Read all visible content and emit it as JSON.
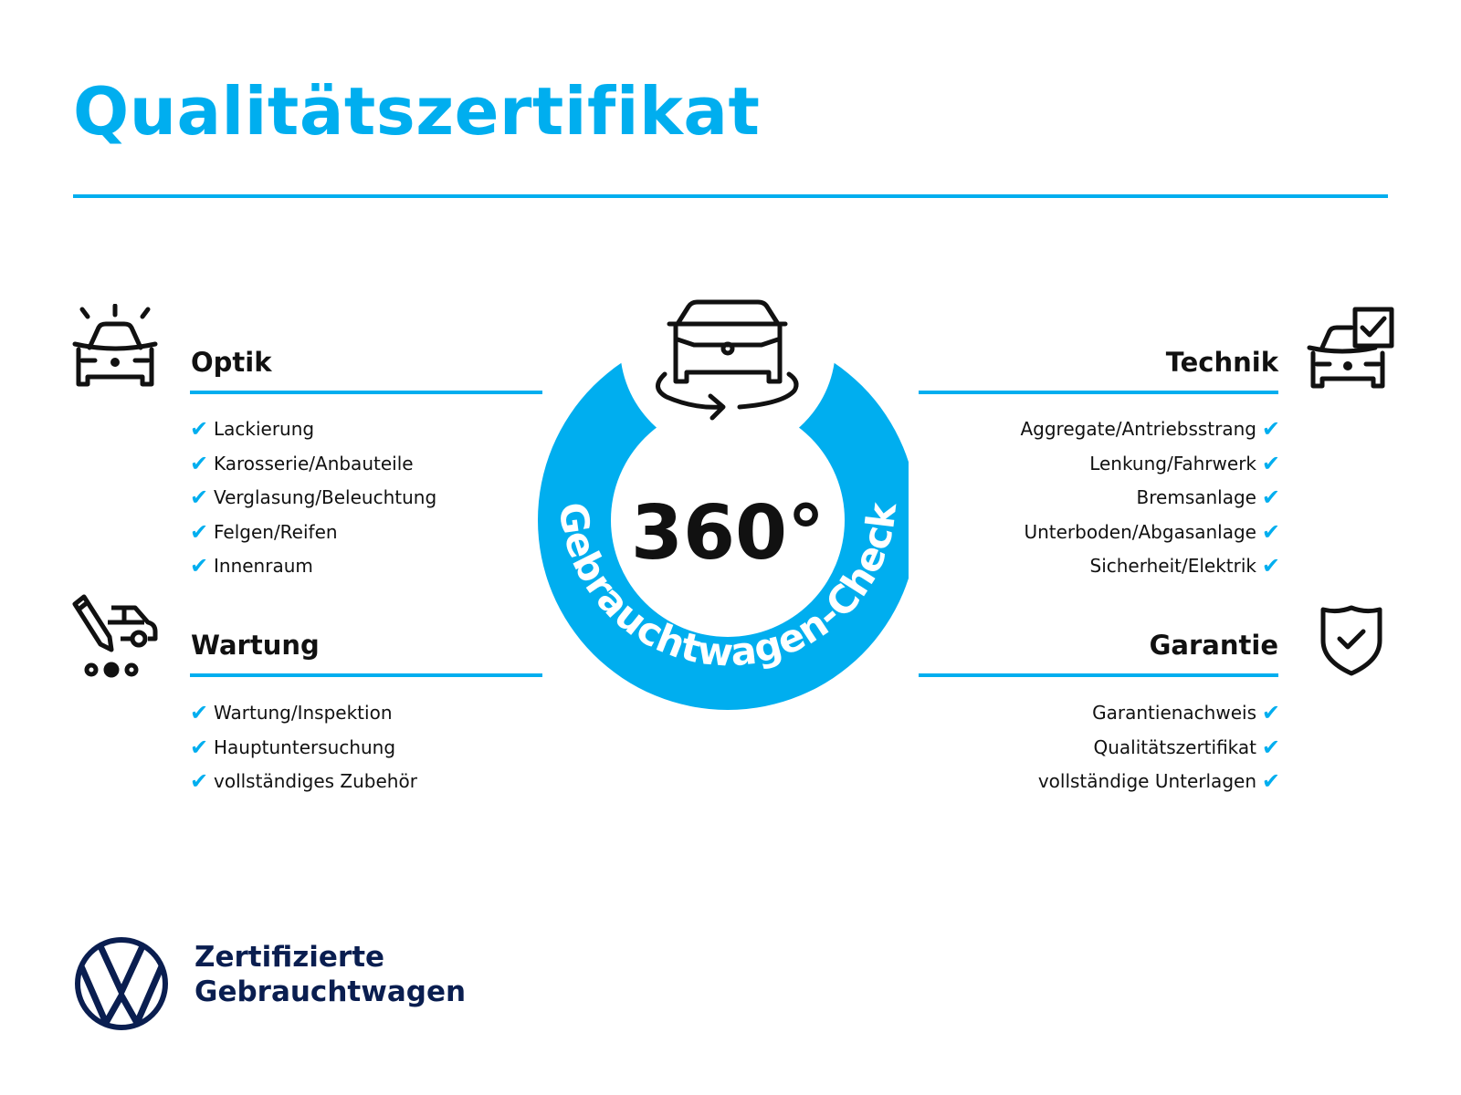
{
  "title": "Qualitätszertifikat",
  "accent_color": "#00aeef",
  "badge": {
    "number": "360°",
    "ring_text": "Gebrauchtwagen-Check"
  },
  "sections": {
    "optik": {
      "title": "Optik",
      "icon": "car-lights-icon",
      "items": [
        "Lackierung",
        "Karosserie/Anbauteile",
        "Verglasung/Beleuchtung",
        "Felgen/Reifen",
        "Innenraum"
      ]
    },
    "wartung": {
      "title": "Wartung",
      "icon": "service-pencil-car-icon",
      "items": [
        "Wartung/Inspektion",
        "Hauptuntersuchung",
        "vollständiges Zubehör"
      ]
    },
    "technik": {
      "title": "Technik",
      "icon": "car-checkbox-icon",
      "items": [
        "Aggregate/Antriebsstrang",
        "Lenkung/Fahrwerk",
        "Bremsanlage",
        "Unterboden/Abgasanlage",
        "Sicherheit/Elektrik"
      ]
    },
    "garantie": {
      "title": "Garantie",
      "icon": "shield-check-icon",
      "items": [
        "Garantienachweis",
        "Qualitätszertifikat",
        "vollständige Unterlagen"
      ]
    }
  },
  "check_glyph": "✔",
  "footer": {
    "line1": "Zertifizierte",
    "line2": "Gebrauchtwagen",
    "logo": "VW"
  }
}
